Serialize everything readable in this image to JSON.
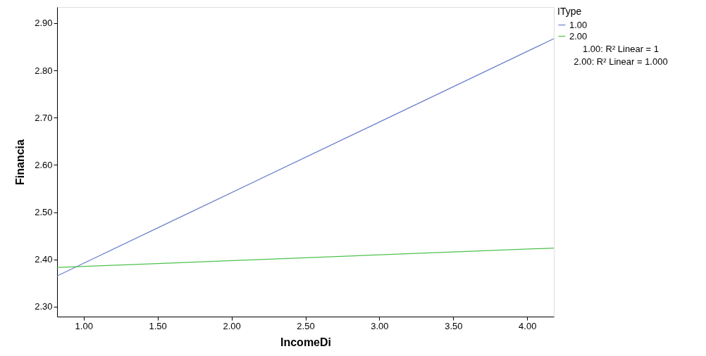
{
  "chart_data": {
    "type": "line",
    "xlabel": "IncomeDi",
    "ylabel": "Financia",
    "legend_title": "IType",
    "series": [
      {
        "name": "1.00",
        "color": "#6b7fcb",
        "values": [
          2.365,
          2.867
        ]
      },
      {
        "name": "2.00",
        "color": "#4cc24c",
        "values": [
          2.383,
          2.424
        ]
      }
    ],
    "x": [
      0.82,
      4.18
    ],
    "xlim": [
      0.82,
      4.18
    ],
    "ylim": [
      2.279,
      2.934
    ],
    "xticks": [
      {
        "value": 1,
        "label": "1.00"
      },
      {
        "value": 1.5,
        "label": "1.50"
      },
      {
        "value": 2,
        "label": "2.00"
      },
      {
        "value": 2.5,
        "label": "2.50"
      },
      {
        "value": 3,
        "label": "3.00"
      },
      {
        "value": 3.5,
        "label": "3.50"
      },
      {
        "value": 4,
        "label": "4.00"
      }
    ],
    "yticks": [
      {
        "value": 2.3,
        "label": "2.30"
      },
      {
        "value": 2.4,
        "label": "2.40"
      },
      {
        "value": 2.5,
        "label": "2.50"
      },
      {
        "value": 2.6,
        "label": "2.60"
      },
      {
        "value": 2.7,
        "label": "2.70"
      },
      {
        "value": 2.8,
        "label": "2.80"
      },
      {
        "value": 2.9,
        "label": "2.90"
      }
    ],
    "legend": "top right",
    "grid": false,
    "marker": "none",
    "line_style": "solid",
    "annotations": [
      "1.00: R² Linear = 1",
      "2.00: R² Linear = 1.000"
    ]
  }
}
